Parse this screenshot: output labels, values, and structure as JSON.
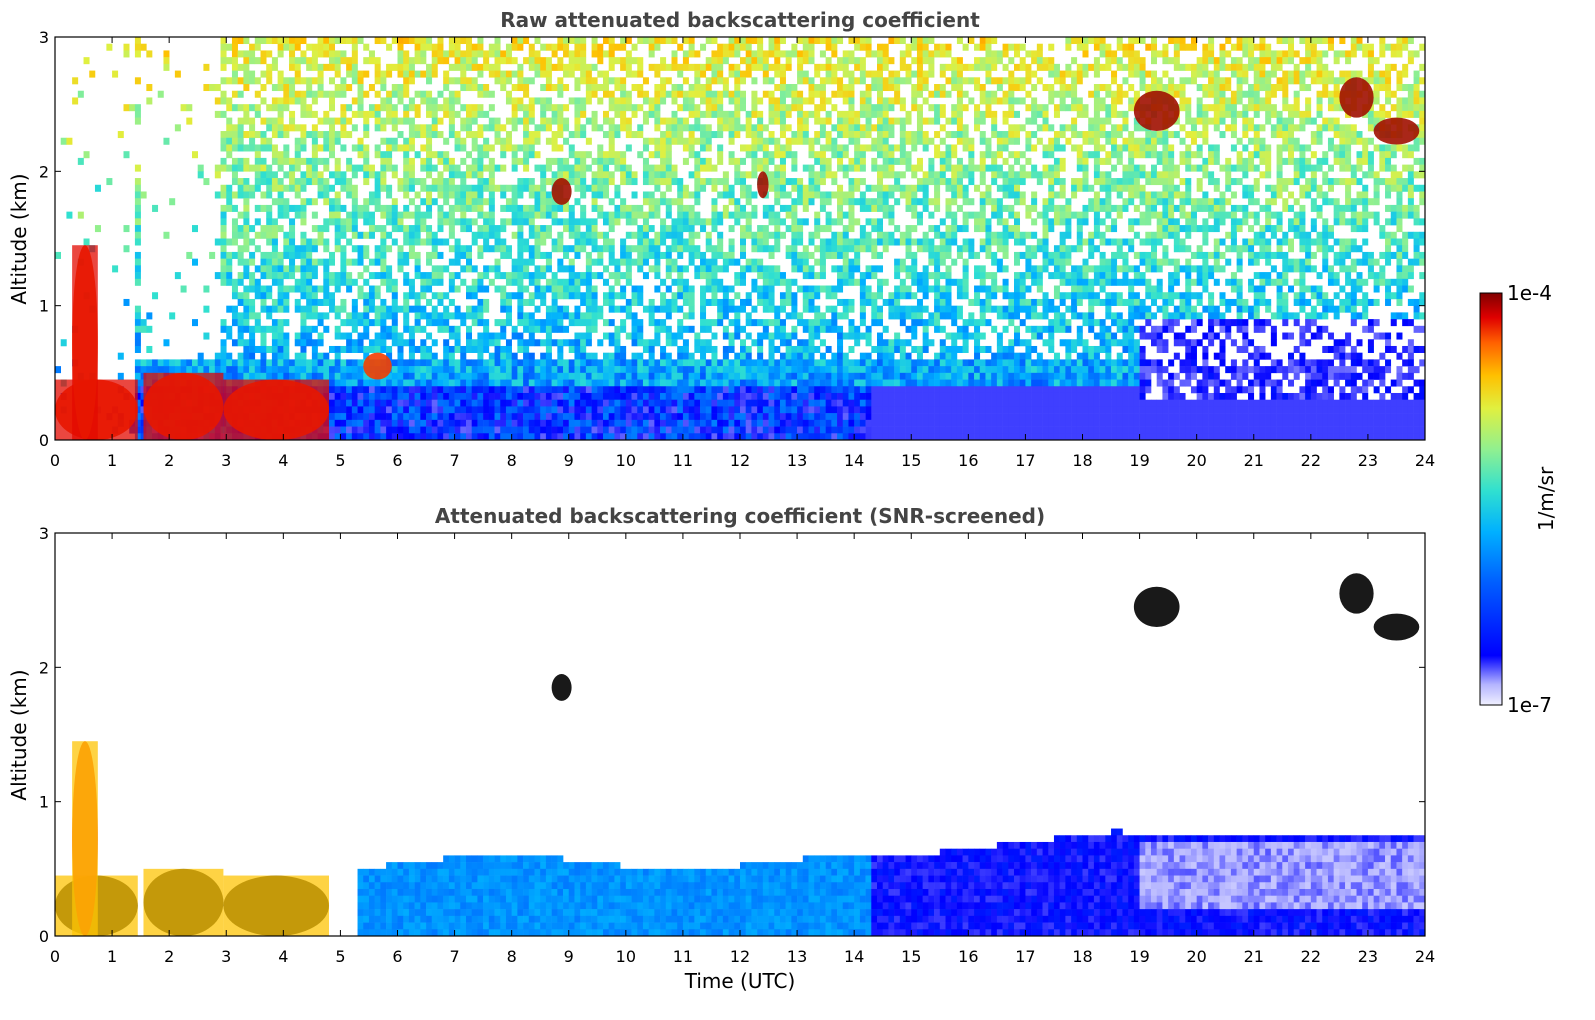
{
  "chart_data": [
    {
      "type": "heatmap",
      "title": "Raw attenuated backscattering coefficient",
      "xlabel": "",
      "ylabel": "Altitude (km)",
      "xlim": [
        0,
        24
      ],
      "ylim": [
        0,
        3
      ],
      "xticks": [
        "0",
        "1",
        "2",
        "3",
        "4",
        "5",
        "6",
        "7",
        "8",
        "9",
        "10",
        "11",
        "12",
        "13",
        "14",
        "15",
        "16",
        "17",
        "18",
        "19",
        "20",
        "21",
        "22",
        "23",
        "24"
      ],
      "yticks": [
        "0",
        "1",
        "2",
        "3"
      ],
      "screened": false,
      "features": [
        {
          "kind": "boundary_layer_aerosol",
          "x": [
            0.0,
            1.45
          ],
          "y": [
            0.0,
            0.45
          ],
          "level": "high"
        },
        {
          "kind": "boundary_layer_aerosol",
          "x": [
            0.3,
            0.75
          ],
          "y": [
            0.0,
            1.45
          ],
          "level": "high"
        },
        {
          "kind": "boundary_layer_aerosol",
          "x": [
            1.55,
            2.95
          ],
          "y": [
            0.0,
            0.5
          ],
          "level": "high"
        },
        {
          "kind": "boundary_layer_aerosol",
          "x": [
            2.95,
            4.8
          ],
          "y": [
            0.0,
            0.45
          ],
          "level": "high"
        },
        {
          "kind": "aerosol_plume",
          "x": [
            5.4,
            5.9
          ],
          "y": [
            0.45,
            0.65
          ],
          "level": "high"
        },
        {
          "kind": "cloud",
          "x": [
            8.7,
            9.05
          ],
          "y": [
            1.75,
            1.95
          ],
          "level": "high"
        },
        {
          "kind": "cloud",
          "x": [
            12.3,
            12.5
          ],
          "y": [
            1.8,
            2.0
          ],
          "level": "high"
        },
        {
          "kind": "cloud",
          "x": [
            18.9,
            19.7
          ],
          "y": [
            2.3,
            2.6
          ],
          "level": "high"
        },
        {
          "kind": "cloud",
          "x": [
            22.5,
            23.1
          ],
          "y": [
            2.4,
            2.7
          ],
          "level": "high"
        },
        {
          "kind": "cloud",
          "x": [
            23.1,
            23.9
          ],
          "y": [
            2.2,
            2.4
          ],
          "level": "high"
        }
      ]
    },
    {
      "type": "heatmap",
      "title": "Attenuated backscattering coefficient (SNR-screened)",
      "xlabel": "Time (UTC)",
      "ylabel": "Altitude (km)",
      "xlim": [
        0,
        24
      ],
      "ylim": [
        0,
        3
      ],
      "xticks": [
        "0",
        "1",
        "2",
        "3",
        "4",
        "5",
        "6",
        "7",
        "8",
        "9",
        "10",
        "11",
        "12",
        "13",
        "14",
        "15",
        "16",
        "17",
        "18",
        "19",
        "20",
        "21",
        "22",
        "23",
        "24"
      ],
      "yticks": [
        "0",
        "1",
        "2",
        "3"
      ],
      "screened": true,
      "features": [
        {
          "kind": "boundary_layer_aerosol",
          "x": [
            0.0,
            1.45
          ],
          "y": [
            0.0,
            0.45
          ],
          "level": "very_high"
        },
        {
          "kind": "boundary_layer_aerosol",
          "x": [
            0.3,
            0.75
          ],
          "y": [
            0.0,
            1.45
          ],
          "level": "high"
        },
        {
          "kind": "boundary_layer_aerosol",
          "x": [
            1.55,
            2.95
          ],
          "y": [
            0.0,
            0.5
          ],
          "level": "very_high"
        },
        {
          "kind": "boundary_layer_aerosol",
          "x": [
            2.95,
            4.8
          ],
          "y": [
            0.0,
            0.45
          ],
          "level": "very_high"
        },
        {
          "kind": "cloud",
          "x": [
            8.7,
            9.05
          ],
          "y": [
            1.75,
            1.95
          ],
          "level": "very_high"
        },
        {
          "kind": "cloud",
          "x": [
            18.9,
            19.7
          ],
          "y": [
            2.3,
            2.6
          ],
          "level": "very_high"
        },
        {
          "kind": "cloud",
          "x": [
            22.5,
            23.1
          ],
          "y": [
            2.4,
            2.7
          ],
          "level": "very_high"
        },
        {
          "kind": "cloud",
          "x": [
            23.1,
            23.9
          ],
          "y": [
            2.2,
            2.4
          ],
          "level": "very_high"
        }
      ]
    }
  ],
  "colorbar": {
    "label": "1/m/sr",
    "max_label": "1e-4",
    "min_label": "1e-7",
    "scale": "log",
    "range": [
      1e-07,
      0.0001
    ],
    "colormap": [
      "#f0f0ff",
      "#b4b4ff",
      "#0000ff",
      "#0060ff",
      "#00b0ff",
      "#30e0d0",
      "#90f090",
      "#e0f040",
      "#ffc000",
      "#ff6000",
      "#e00000",
      "#800000"
    ]
  }
}
